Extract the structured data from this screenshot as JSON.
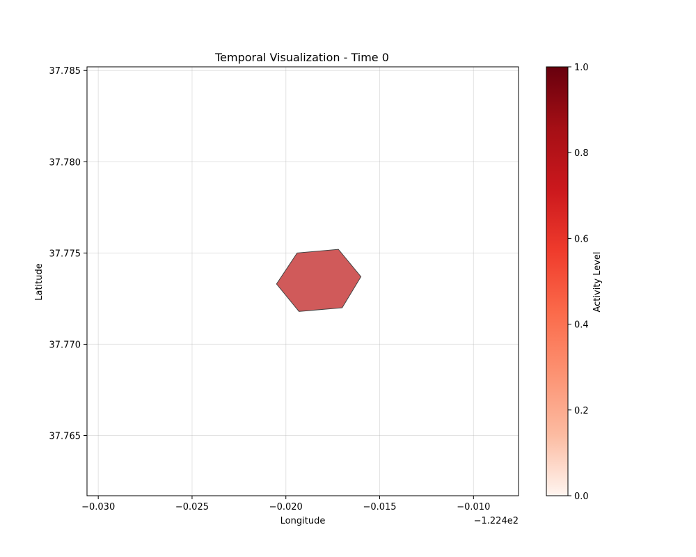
{
  "chart_data": {
    "type": "heatmap",
    "title": "Temporal Visualization - Time 0",
    "xlabel": "Longitude",
    "ylabel": "Latitude",
    "x_offset_label": "−1.224e2",
    "xlim": [
      -0.0306,
      -0.0076
    ],
    "ylim": [
      37.7617,
      37.7852
    ],
    "x_ticks": [
      -0.03,
      -0.025,
      -0.02,
      -0.015,
      -0.01
    ],
    "x_tick_labels": [
      "−0.030",
      "−0.025",
      "−0.020",
      "−0.015",
      "−0.010"
    ],
    "y_ticks": [
      37.765,
      37.77,
      37.775,
      37.78,
      37.785
    ],
    "y_tick_labels": [
      "37.765",
      "37.770",
      "37.775",
      "37.780",
      "37.785"
    ],
    "grid": true,
    "hexagons": [
      {
        "vertices": [
          [
            -0.0194,
            37.775
          ],
          [
            -0.0172,
            37.7752
          ],
          [
            -0.016,
            37.7737
          ],
          [
            -0.017,
            37.772
          ],
          [
            -0.0193,
            37.7718
          ],
          [
            -0.0205,
            37.7733
          ]
        ],
        "value": 0.7,
        "fill": "#d05a5a"
      }
    ],
    "colorbar": {
      "label": "Activity Level",
      "colormap": "Reds",
      "range": [
        0,
        1
      ],
      "ticks": [
        0.0,
        0.2,
        0.4,
        0.6,
        0.8,
        1.0
      ],
      "tick_labels": [
        "0.0",
        "0.2",
        "0.4",
        "0.6",
        "0.8",
        "1.0"
      ],
      "colors": [
        "#fff5f0",
        "#fcbba1",
        "#fc9272",
        "#fb6a4a",
        "#ef3b2c",
        "#cb181d",
        "#a50f15",
        "#67000d"
      ]
    }
  }
}
